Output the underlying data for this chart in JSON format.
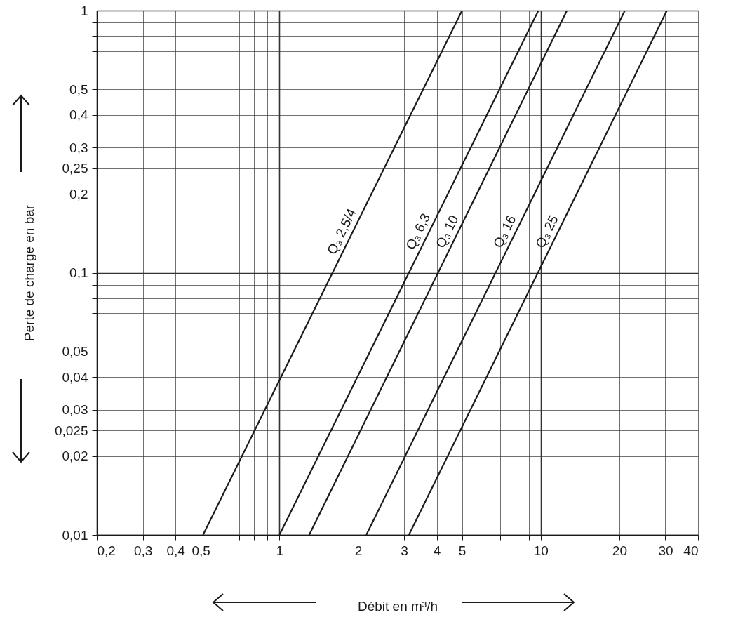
{
  "chart_data": {
    "type": "line",
    "xlabel": "Débit en m³/h",
    "ylabel": "Perte de charge en bar",
    "log": "xy",
    "grid": true,
    "xlim": [
      0.2,
      40
    ],
    "ylim": [
      0.01,
      1
    ],
    "xticks": [
      {
        "value": 0.2,
        "label": "0,2"
      },
      {
        "value": 0.3,
        "label": "0,3"
      },
      {
        "value": 0.4,
        "label": "0,4"
      },
      {
        "value": 0.5,
        "label": "0,5"
      },
      {
        "value": 0.6,
        "label": null
      },
      {
        "value": 0.7,
        "label": null
      },
      {
        "value": 0.8,
        "label": null
      },
      {
        "value": 0.9,
        "label": null
      },
      1,
      2,
      3,
      4,
      5,
      {
        "value": 6,
        "label": null
      },
      {
        "value": 7,
        "label": null
      },
      {
        "value": 8,
        "label": null
      },
      {
        "value": 9,
        "label": null
      },
      10,
      20,
      30,
      40
    ],
    "yticks": [
      {
        "value": 0.01,
        "label": "0,01"
      },
      {
        "value": 0.02,
        "label": "0,02"
      },
      {
        "value": 0.025,
        "label": "0,025"
      },
      {
        "value": 0.03,
        "label": "0,03"
      },
      {
        "value": 0.04,
        "label": "0,04"
      },
      {
        "value": 0.05,
        "label": "0,05"
      },
      {
        "value": 0.06,
        "label": null
      },
      {
        "value": 0.07,
        "label": null
      },
      {
        "value": 0.08,
        "label": null
      },
      {
        "value": 0.09,
        "label": null
      },
      {
        "value": 0.1,
        "label": "0,1"
      },
      {
        "value": 0.2,
        "label": "0,2"
      },
      {
        "value": 0.25,
        "label": "0,25"
      },
      {
        "value": 0.3,
        "label": "0,3"
      },
      {
        "value": 0.4,
        "label": "0,4"
      },
      {
        "value": 0.5,
        "label": "0,5"
      },
      {
        "value": 0.6,
        "label": null
      },
      {
        "value": 0.7,
        "label": null
      },
      {
        "value": 0.8,
        "label": null
      },
      {
        "value": 0.9,
        "label": null
      },
      1
    ],
    "series": [
      {
        "name": "Q₃ 2,5/4",
        "color": "#1a1a1a",
        "x": [
          0.51,
          5
        ],
        "values": [
          0.01,
          1
        ]
      },
      {
        "name": "Q₃ 6,3",
        "color": "#1a1a1a",
        "x": [
          1,
          9.8
        ],
        "values": [
          0.01,
          1
        ]
      },
      {
        "name": "Q₃ 10",
        "color": "#1a1a1a",
        "x": [
          1.3,
          12.6
        ],
        "values": [
          0.01,
          1
        ]
      },
      {
        "name": "Q₃ 16",
        "color": "#1a1a1a",
        "x": [
          2.15,
          21
        ],
        "values": [
          0.01,
          1
        ]
      },
      {
        "name": "Q₃ 25",
        "color": "#1a1a1a",
        "x": [
          3.13,
          30.4
        ],
        "values": [
          0.01,
          1
        ]
      }
    ]
  }
}
